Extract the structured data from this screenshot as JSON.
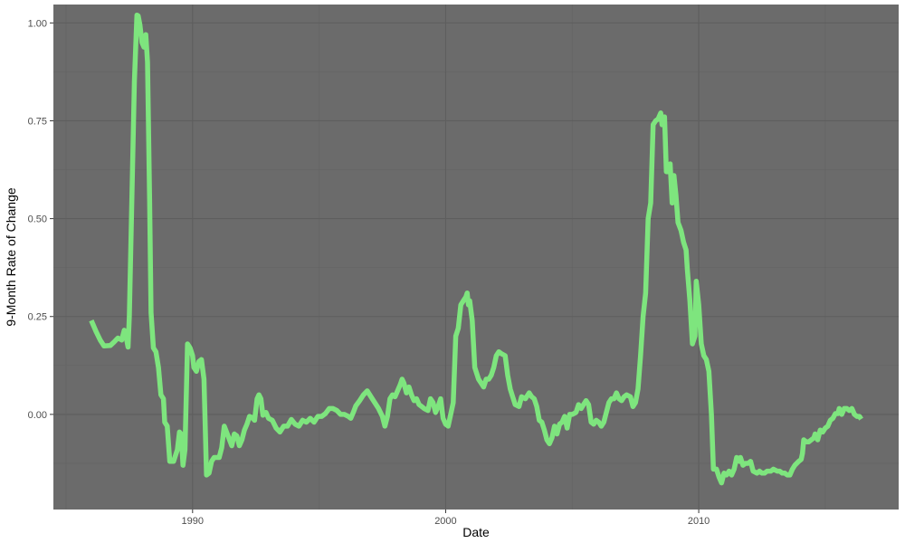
{
  "chart_data": {
    "type": "line",
    "title": "",
    "xlabel": "Date",
    "ylabel": "9-Month Rate of Change",
    "x_ticks": [
      "1990",
      "2000",
      "2010"
    ],
    "y_ticks": [
      "0.00",
      "0.25",
      "0.50",
      "0.75",
      "1.00"
    ],
    "xlim": [
      1984.5,
      2017.9
    ],
    "ylim": [
      -0.243,
      1.047
    ],
    "grid": true,
    "legend": "none",
    "colors": {
      "panel": "#6b6b6b",
      "grid_major": "#5e5e5e",
      "grid_minor": "#636363",
      "line": "#7ee57e"
    },
    "series": [
      {
        "values": [
          [
            1986.0,
            0.24
          ],
          [
            1986.2,
            0.21
          ],
          [
            1986.35,
            0.19
          ],
          [
            1986.5,
            0.175
          ],
          [
            1986.75,
            0.176
          ],
          [
            1986.9,
            0.185
          ],
          [
            1987.05,
            0.195
          ],
          [
            1987.2,
            0.19
          ],
          [
            1987.3,
            0.215
          ],
          [
            1987.38,
            0.196
          ],
          [
            1987.45,
            0.172
          ],
          [
            1987.5,
            0.25
          ],
          [
            1987.6,
            0.55
          ],
          [
            1987.7,
            0.85
          ],
          [
            1987.8,
            1.02
          ],
          [
            1987.85,
            1.018
          ],
          [
            1987.92,
            0.995
          ],
          [
            1988.0,
            0.95
          ],
          [
            1988.08,
            0.938
          ],
          [
            1988.15,
            0.97
          ],
          [
            1988.22,
            0.9
          ],
          [
            1988.3,
            0.55
          ],
          [
            1988.36,
            0.26
          ],
          [
            1988.45,
            0.17
          ],
          [
            1988.55,
            0.16
          ],
          [
            1988.65,
            0.12
          ],
          [
            1988.75,
            0.05
          ],
          [
            1988.85,
            0.04
          ],
          [
            1988.9,
            -0.02
          ],
          [
            1989.0,
            -0.03
          ],
          [
            1989.1,
            -0.12
          ],
          [
            1989.25,
            -0.12
          ],
          [
            1989.4,
            -0.09
          ],
          [
            1989.48,
            -0.045
          ],
          [
            1989.55,
            -0.05
          ],
          [
            1989.62,
            -0.13
          ],
          [
            1989.7,
            -0.09
          ],
          [
            1989.8,
            0.18
          ],
          [
            1989.9,
            0.17
          ],
          [
            1990.0,
            0.15
          ],
          [
            1990.05,
            0.12
          ],
          [
            1990.15,
            0.11
          ],
          [
            1990.25,
            0.135
          ],
          [
            1990.35,
            0.14
          ],
          [
            1990.45,
            0.09
          ],
          [
            1990.55,
            -0.155
          ],
          [
            1990.65,
            -0.15
          ],
          [
            1990.75,
            -0.12
          ],
          [
            1990.85,
            -0.11
          ],
          [
            1990.95,
            -0.11
          ],
          [
            1991.05,
            -0.11
          ],
          [
            1991.15,
            -0.085
          ],
          [
            1991.25,
            -0.03
          ],
          [
            1991.4,
            -0.055
          ],
          [
            1991.55,
            -0.08
          ],
          [
            1991.65,
            -0.05
          ],
          [
            1991.75,
            -0.055
          ],
          [
            1991.85,
            -0.08
          ],
          [
            1991.95,
            -0.065
          ],
          [
            1992.05,
            -0.04
          ],
          [
            1992.15,
            -0.025
          ],
          [
            1992.25,
            -0.005
          ],
          [
            1992.35,
            -0.008
          ],
          [
            1992.45,
            -0.015
          ],
          [
            1992.55,
            0.04
          ],
          [
            1992.62,
            0.05
          ],
          [
            1992.7,
            0.04
          ],
          [
            1992.78,
            -0.002
          ],
          [
            1992.9,
            0.005
          ],
          [
            1993.0,
            -0.01
          ],
          [
            1993.15,
            -0.015
          ],
          [
            1993.3,
            -0.035
          ],
          [
            1993.45,
            -0.045
          ],
          [
            1993.6,
            -0.03
          ],
          [
            1993.75,
            -0.03
          ],
          [
            1993.9,
            -0.013
          ],
          [
            1994.05,
            -0.025
          ],
          [
            1994.2,
            -0.03
          ],
          [
            1994.35,
            -0.015
          ],
          [
            1994.5,
            -0.02
          ],
          [
            1994.65,
            -0.01
          ],
          [
            1994.8,
            -0.02
          ],
          [
            1994.95,
            -0.005
          ],
          [
            1995.1,
            -0.005
          ],
          [
            1995.25,
            0.002
          ],
          [
            1995.4,
            0.015
          ],
          [
            1995.55,
            0.015
          ],
          [
            1995.7,
            0.01
          ],
          [
            1995.85,
            0.0
          ],
          [
            1996.0,
            0.0
          ],
          [
            1996.15,
            -0.005
          ],
          [
            1996.25,
            -0.01
          ],
          [
            1996.35,
            0.005
          ],
          [
            1996.45,
            0.022
          ],
          [
            1996.6,
            0.035
          ],
          [
            1996.75,
            0.05
          ],
          [
            1996.9,
            0.06
          ],
          [
            1997.05,
            0.045
          ],
          [
            1997.2,
            0.03
          ],
          [
            1997.35,
            0.015
          ],
          [
            1997.5,
            -0.005
          ],
          [
            1997.6,
            -0.03
          ],
          [
            1997.7,
            -0.005
          ],
          [
            1997.8,
            0.04
          ],
          [
            1997.9,
            0.05
          ],
          [
            1998.0,
            0.045
          ],
          [
            1998.1,
            0.06
          ],
          [
            1998.2,
            0.075
          ],
          [
            1998.28,
            0.09
          ],
          [
            1998.35,
            0.08
          ],
          [
            1998.45,
            0.055
          ],
          [
            1998.55,
            0.07
          ],
          [
            1998.65,
            0.05
          ],
          [
            1998.75,
            0.035
          ],
          [
            1998.85,
            0.04
          ],
          [
            1998.95,
            0.025
          ],
          [
            1999.05,
            0.02
          ],
          [
            1999.15,
            0.015
          ],
          [
            1999.3,
            0.01
          ],
          [
            1999.4,
            0.04
          ],
          [
            1999.5,
            0.03
          ],
          [
            1999.6,
            0.005
          ],
          [
            1999.7,
            0.02
          ],
          [
            1999.8,
            0.04
          ],
          [
            1999.9,
            -0.01
          ],
          [
            2000.0,
            -0.025
          ],
          [
            2000.1,
            -0.03
          ],
          [
            2000.2,
            0.0
          ],
          [
            2000.3,
            0.03
          ],
          [
            2000.4,
            0.2
          ],
          [
            2000.5,
            0.22
          ],
          [
            2000.6,
            0.28
          ],
          [
            2000.7,
            0.29
          ],
          [
            2000.8,
            0.3
          ],
          [
            2000.85,
            0.31
          ],
          [
            2000.9,
            0.28
          ],
          [
            2000.95,
            0.29
          ],
          [
            2001.05,
            0.24
          ],
          [
            2001.15,
            0.12
          ],
          [
            2001.3,
            0.09
          ],
          [
            2001.4,
            0.08
          ],
          [
            2001.5,
            0.07
          ],
          [
            2001.6,
            0.09
          ],
          [
            2001.7,
            0.09
          ],
          [
            2001.8,
            0.1
          ],
          [
            2001.9,
            0.12
          ],
          [
            2002.0,
            0.15
          ],
          [
            2002.1,
            0.16
          ],
          [
            2002.2,
            0.155
          ],
          [
            2002.35,
            0.15
          ],
          [
            2002.45,
            0.1
          ],
          [
            2002.55,
            0.065
          ],
          [
            2002.65,
            0.045
          ],
          [
            2002.75,
            0.025
          ],
          [
            2002.9,
            0.02
          ],
          [
            2003.0,
            0.045
          ],
          [
            2003.15,
            0.04
          ],
          [
            2003.3,
            0.055
          ],
          [
            2003.4,
            0.045
          ],
          [
            2003.5,
            0.04
          ],
          [
            2003.6,
            0.02
          ],
          [
            2003.7,
            -0.015
          ],
          [
            2003.8,
            -0.02
          ],
          [
            2003.9,
            -0.04
          ],
          [
            2004.0,
            -0.065
          ],
          [
            2004.1,
            -0.075
          ],
          [
            2004.2,
            -0.06
          ],
          [
            2004.3,
            -0.03
          ],
          [
            2004.4,
            -0.05
          ],
          [
            2004.5,
            -0.025
          ],
          [
            2004.6,
            -0.02
          ],
          [
            2004.7,
            -0.005
          ],
          [
            2004.8,
            -0.035
          ],
          [
            2004.9,
            0.0
          ],
          [
            2005.0,
            0.0
          ],
          [
            2005.15,
            0.005
          ],
          [
            2005.25,
            0.025
          ],
          [
            2005.35,
            0.015
          ],
          [
            2005.45,
            0.025
          ],
          [
            2005.55,
            0.035
          ],
          [
            2005.65,
            0.025
          ],
          [
            2005.75,
            -0.02
          ],
          [
            2005.85,
            -0.025
          ],
          [
            2005.95,
            -0.015
          ],
          [
            2006.05,
            -0.02
          ],
          [
            2006.15,
            -0.03
          ],
          [
            2006.25,
            -0.02
          ],
          [
            2006.35,
            0.005
          ],
          [
            2006.45,
            0.03
          ],
          [
            2006.55,
            0.04
          ],
          [
            2006.65,
            0.04
          ],
          [
            2006.75,
            0.055
          ],
          [
            2006.85,
            0.04
          ],
          [
            2006.95,
            0.035
          ],
          [
            2007.05,
            0.045
          ],
          [
            2007.15,
            0.05
          ],
          [
            2007.3,
            0.045
          ],
          [
            2007.4,
            0.02
          ],
          [
            2007.5,
            0.03
          ],
          [
            2007.6,
            0.065
          ],
          [
            2007.7,
            0.15
          ],
          [
            2007.8,
            0.25
          ],
          [
            2007.9,
            0.31
          ],
          [
            2008.0,
            0.5
          ],
          [
            2008.1,
            0.54
          ],
          [
            2008.2,
            0.74
          ],
          [
            2008.3,
            0.75
          ],
          [
            2008.4,
            0.755
          ],
          [
            2008.5,
            0.77
          ],
          [
            2008.55,
            0.74
          ],
          [
            2008.65,
            0.76
          ],
          [
            2008.72,
            0.62
          ],
          [
            2008.8,
            0.62
          ],
          [
            2008.87,
            0.64
          ],
          [
            2008.95,
            0.54
          ],
          [
            2009.02,
            0.61
          ],
          [
            2009.1,
            0.56
          ],
          [
            2009.18,
            0.49
          ],
          [
            2009.3,
            0.47
          ],
          [
            2009.4,
            0.44
          ],
          [
            2009.5,
            0.42
          ],
          [
            2009.55,
            0.37
          ],
          [
            2009.65,
            0.29
          ],
          [
            2009.75,
            0.18
          ],
          [
            2009.85,
            0.2
          ],
          [
            2009.9,
            0.34
          ],
          [
            2010.0,
            0.28
          ],
          [
            2010.1,
            0.18
          ],
          [
            2010.2,
            0.15
          ],
          [
            2010.3,
            0.14
          ],
          [
            2010.4,
            0.11
          ],
          [
            2010.5,
            0.0
          ],
          [
            2010.58,
            -0.14
          ],
          [
            2010.7,
            -0.14
          ],
          [
            2010.8,
            -0.16
          ],
          [
            2010.9,
            -0.175
          ],
          [
            2011.0,
            -0.15
          ],
          [
            2011.1,
            -0.155
          ],
          [
            2011.2,
            -0.145
          ],
          [
            2011.3,
            -0.155
          ],
          [
            2011.4,
            -0.14
          ],
          [
            2011.5,
            -0.11
          ],
          [
            2011.6,
            -0.12
          ],
          [
            2011.65,
            -0.11
          ],
          [
            2011.75,
            -0.13
          ],
          [
            2011.85,
            -0.125
          ],
          [
            2011.95,
            -0.125
          ],
          [
            2012.05,
            -0.12
          ],
          [
            2012.15,
            -0.145
          ],
          [
            2012.3,
            -0.15
          ],
          [
            2012.4,
            -0.145
          ],
          [
            2012.5,
            -0.15
          ],
          [
            2012.6,
            -0.15
          ],
          [
            2012.7,
            -0.145
          ],
          [
            2012.85,
            -0.145
          ],
          [
            2012.95,
            -0.14
          ],
          [
            2013.1,
            -0.145
          ],
          [
            2013.2,
            -0.145
          ],
          [
            2013.3,
            -0.15
          ],
          [
            2013.4,
            -0.15
          ],
          [
            2013.5,
            -0.155
          ],
          [
            2013.6,
            -0.155
          ],
          [
            2013.7,
            -0.14
          ],
          [
            2013.8,
            -0.13
          ],
          [
            2013.95,
            -0.12
          ],
          [
            2014.05,
            -0.115
          ],
          [
            2014.1,
            -0.1
          ],
          [
            2014.15,
            -0.065
          ],
          [
            2014.25,
            -0.07
          ],
          [
            2014.35,
            -0.07
          ],
          [
            2014.45,
            -0.065
          ],
          [
            2014.55,
            -0.06
          ],
          [
            2014.6,
            -0.05
          ],
          [
            2014.7,
            -0.065
          ],
          [
            2014.8,
            -0.04
          ],
          [
            2014.9,
            -0.045
          ],
          [
            2015.0,
            -0.035
          ],
          [
            2015.1,
            -0.03
          ],
          [
            2015.2,
            -0.015
          ],
          [
            2015.3,
            -0.01
          ],
          [
            2015.4,
            0.002
          ],
          [
            2015.5,
            0.002
          ],
          [
            2015.55,
            0.015
          ],
          [
            2015.65,
            0.0
          ],
          [
            2015.75,
            0.015
          ],
          [
            2015.85,
            0.015
          ],
          [
            2015.95,
            0.01
          ],
          [
            2016.05,
            0.015
          ],
          [
            2016.15,
            0.0
          ],
          [
            2016.25,
            -0.005
          ],
          [
            2016.35,
            -0.005
          ],
          [
            2016.42,
            -0.012
          ]
        ]
      }
    ]
  }
}
